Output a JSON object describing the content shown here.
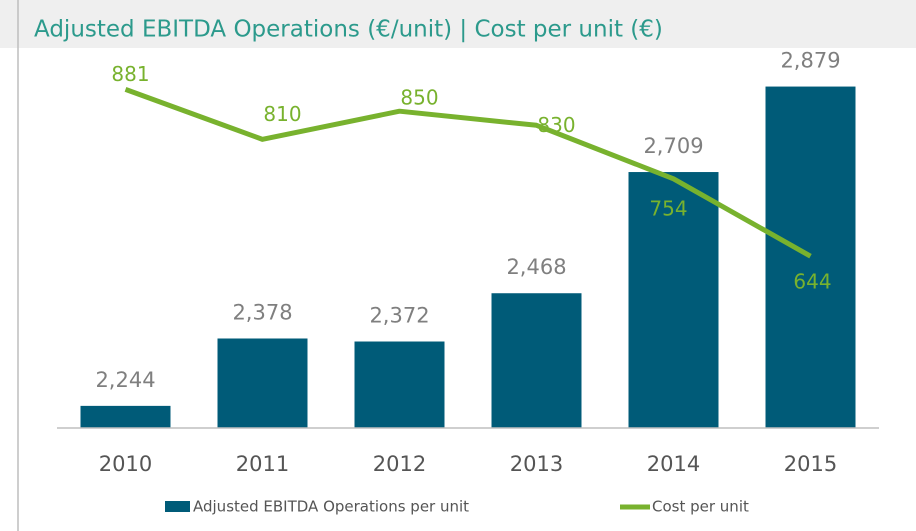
{
  "chart_data": {
    "type": "bar-line",
    "title": "Adjusted EBITDA Operations (€/unit) | Cost per unit (€)",
    "categories": [
      "2010",
      "2011",
      "2012",
      "2013",
      "2014",
      "2015"
    ],
    "ylim": [
      2200,
      2900
    ],
    "y2lim": [
      400,
      900
    ],
    "series": [
      {
        "name": "Adjusted EBITDA Operations per unit",
        "type": "bar",
        "color": "#005b78",
        "values": [
          2244,
          2378,
          2372,
          2468,
          2709,
          2879
        ],
        "value_labels": [
          "2,244",
          "2,378",
          "2,372",
          "2,468",
          "2,709",
          "2,879"
        ]
      },
      {
        "name": "Cost per unit",
        "type": "line",
        "axis": "y2",
        "color": "#78b22e",
        "values": [
          881,
          810,
          850,
          830,
          754,
          644
        ]
      }
    ],
    "legend": "bottom"
  }
}
